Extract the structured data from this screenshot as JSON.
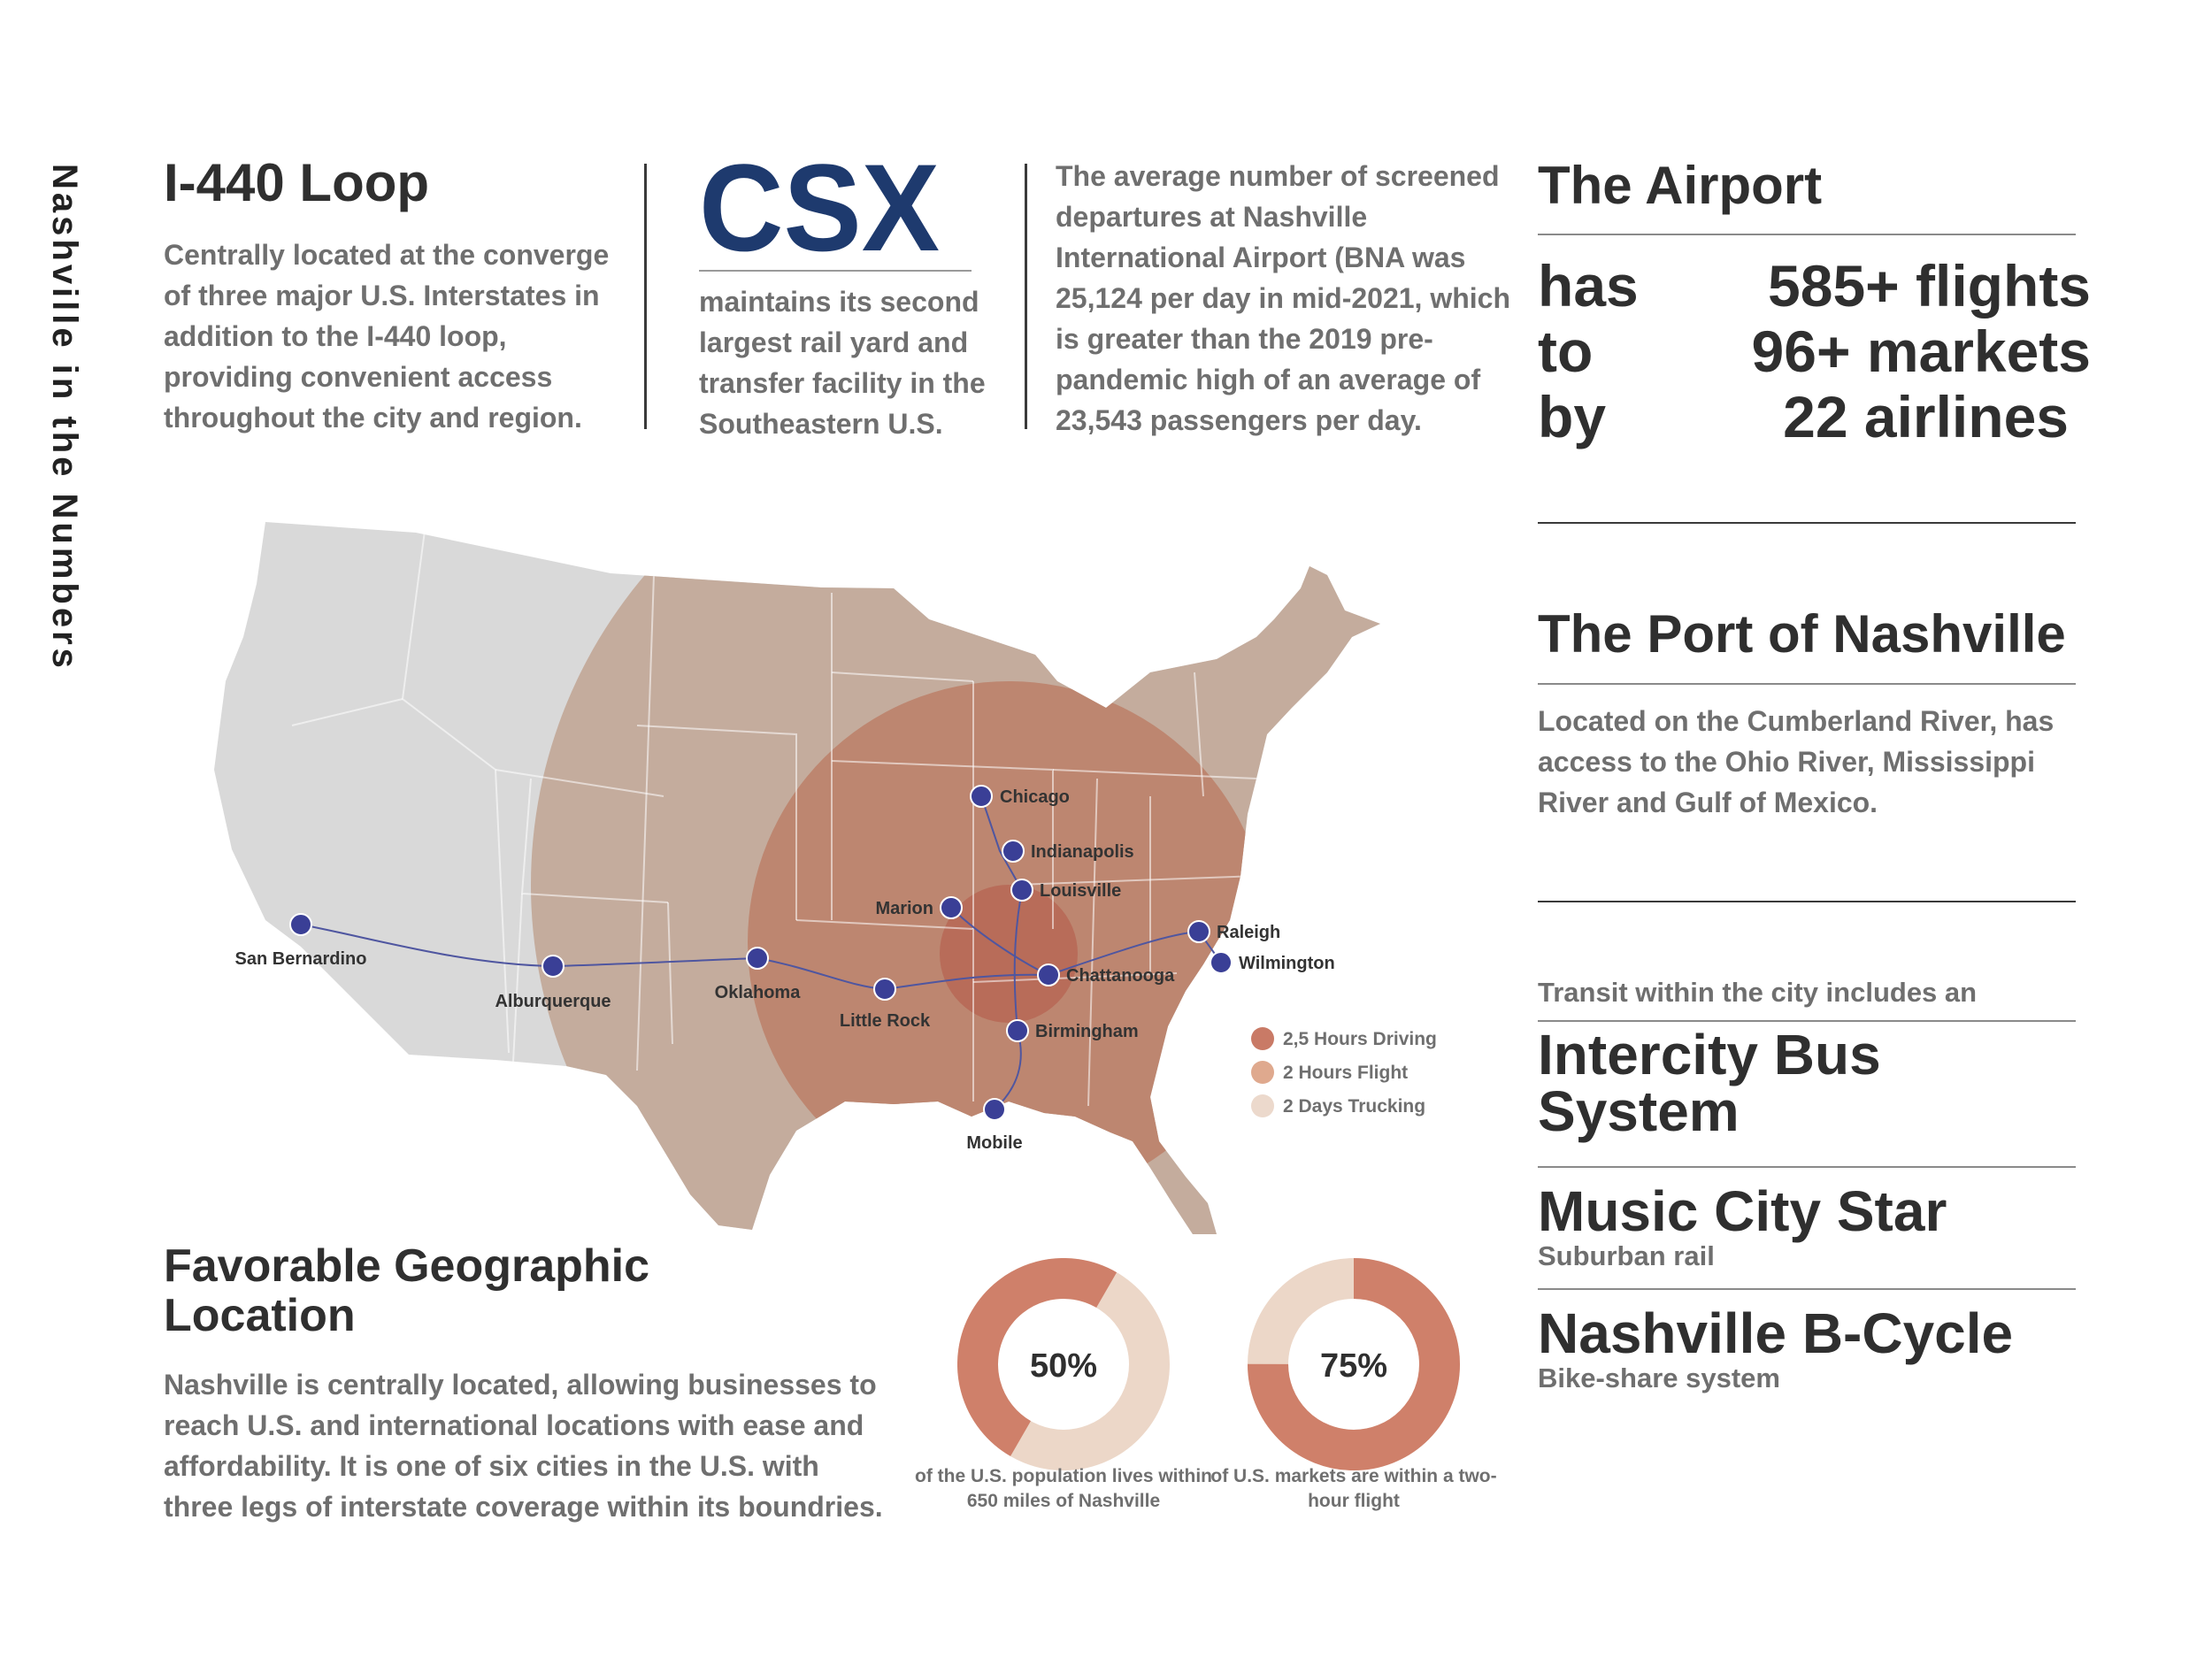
{
  "side_title": "Nashville in the Numbers",
  "loop": {
    "title": "I-440 Loop",
    "text": "Centrally located at the converge of three major U.S. Interstates in addition to the I-440 loop, providing convenient access throughout the city and region."
  },
  "csx": {
    "logo_text": "CSX",
    "logo_color": "#1e3a6e",
    "text": "maintains its second largest rail yard and transfer facility in the Southeastern U.S."
  },
  "departures": {
    "text": "The average number of screened departures at Nashville International Airport (BNA was 25,124 per day in mid-2021, which is greater than the 2019 pre-pandemic high of an average of 23,543 passengers per day."
  },
  "airport": {
    "title": "The Airport",
    "rows": [
      {
        "word": "has",
        "value": "585+ flights"
      },
      {
        "word": "to",
        "value": "96+ markets"
      },
      {
        "word": "by",
        "value": "22 airlines"
      }
    ]
  },
  "port": {
    "title": "The Port of Nashville",
    "text": "Located on the Cumberland River, has access to the Ohio River, Mississippi River and Gulf of Mexico."
  },
  "transit": {
    "intro": "Transit within the city includes an",
    "items": [
      {
        "title": "Intercity Bus System",
        "subtitle": ""
      },
      {
        "title": "Music City Star",
        "subtitle": "Suburban rail"
      },
      {
        "title": "Nashville B-Cycle",
        "subtitle": "Bike-share system"
      }
    ]
  },
  "map": {
    "cities": [
      "Chicago",
      "Indianapolis",
      "Marion",
      "Louisville",
      "Raleigh",
      "Wilmington",
      "San Bernardino",
      "Alburquerque",
      "Oklahoma",
      "Little Rock",
      "Chattanooga",
      "Birmingham",
      "Mobile"
    ],
    "legend": [
      {
        "label": "2,5 Hours Driving",
        "color": "#c97a66"
      },
      {
        "label": "2 Hours Flight",
        "color": "#dfa98e"
      },
      {
        "label": "2 Days Trucking",
        "color": "#ecd9cc"
      }
    ],
    "colors": {
      "land": "#d9d9d9",
      "trucking": "#c4ac9d",
      "flight": "#bd8670",
      "driving": "#b86c59",
      "dot": "#3a3f96",
      "route": "#4f56a0"
    }
  },
  "geo": {
    "title": "Favorable Geographic Location",
    "text": "Nashville is centrally located, allowing businesses to reach U.S. and international locations with ease and affordability. It is one of six cities in the U.S. with three legs of interstate coverage within its boundries."
  },
  "donuts": [
    {
      "label": "50%",
      "percent": 50,
      "caption": "of the U.S. population lives within 650 miles of Nashville"
    },
    {
      "label": "75%",
      "percent": 75,
      "caption": "of U.S. markets are within a two-hour flight"
    }
  ]
}
